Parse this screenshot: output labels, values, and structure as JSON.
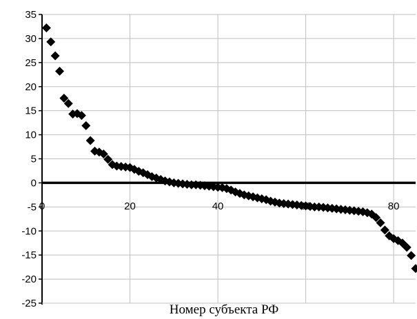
{
  "chart_data": {
    "type": "scatter",
    "title": "",
    "xlabel": "Номер субъекта РФ",
    "ylabel": "",
    "xlim": [
      0,
      85
    ],
    "ylim": [
      -25,
      35
    ],
    "x_ticks": [
      20,
      40,
      60,
      80
    ],
    "y_ticks": [
      35,
      30,
      25,
      20,
      15,
      10,
      5,
      0,
      -5,
      -10,
      -15,
      -20,
      -25
    ],
    "grid": true,
    "legend": "none",
    "marker": "diamond",
    "colors": {
      "marker": "#000000",
      "grid": "#bfbfbf",
      "axis": "#000000",
      "zero_line": "#000000"
    },
    "series": [
      {
        "x": [
          1,
          2,
          3,
          4,
          5,
          6,
          7,
          8,
          9,
          10,
          11,
          12,
          13,
          14,
          15,
          16,
          17,
          18,
          19,
          20,
          21,
          22,
          23,
          24,
          25,
          26,
          27,
          28,
          29,
          30,
          31,
          32,
          33,
          34,
          35,
          36,
          37,
          38,
          39,
          40,
          41,
          42,
          43,
          44,
          45,
          46,
          47,
          48,
          49,
          50,
          51,
          52,
          53,
          54,
          55,
          56,
          57,
          58,
          59,
          60,
          61,
          62,
          63,
          64,
          65,
          66,
          67,
          68,
          69,
          70,
          71,
          72,
          73,
          74,
          75,
          76,
          77,
          78,
          79,
          80,
          81,
          82,
          83,
          84,
          85
        ],
        "y": [
          32.2,
          29.3,
          26.4,
          23.2,
          17.6,
          16.5,
          14.3,
          14.4,
          14.0,
          11.9,
          8.8,
          6.6,
          6.4,
          6.0,
          4.9,
          3.8,
          3.5,
          3.4,
          3.3,
          3.2,
          2.8,
          2.4,
          2.1,
          1.7,
          1.3,
          1.0,
          0.7,
          0.4,
          0.2,
          0.0,
          -0.1,
          -0.2,
          -0.3,
          -0.4,
          -0.4,
          -0.5,
          -0.6,
          -0.7,
          -0.8,
          -0.9,
          -1.0,
          -1.2,
          -1.5,
          -1.9,
          -2.2,
          -2.5,
          -2.7,
          -2.9,
          -3.1,
          -3.3,
          -3.5,
          -3.8,
          -4.0,
          -4.2,
          -4.3,
          -4.4,
          -4.5,
          -4.6,
          -4.7,
          -4.8,
          -4.9,
          -5.0,
          -5.0,
          -5.1,
          -5.2,
          -5.3,
          -5.4,
          -5.5,
          -5.6,
          -5.7,
          -5.8,
          -5.9,
          -6.0,
          -6.2,
          -6.5,
          -7.2,
          -8.3,
          -9.8,
          -11.0,
          -11.6,
          -12.0,
          -12.5,
          -13.4,
          -15.1,
          -17.8
        ]
      }
    ]
  }
}
